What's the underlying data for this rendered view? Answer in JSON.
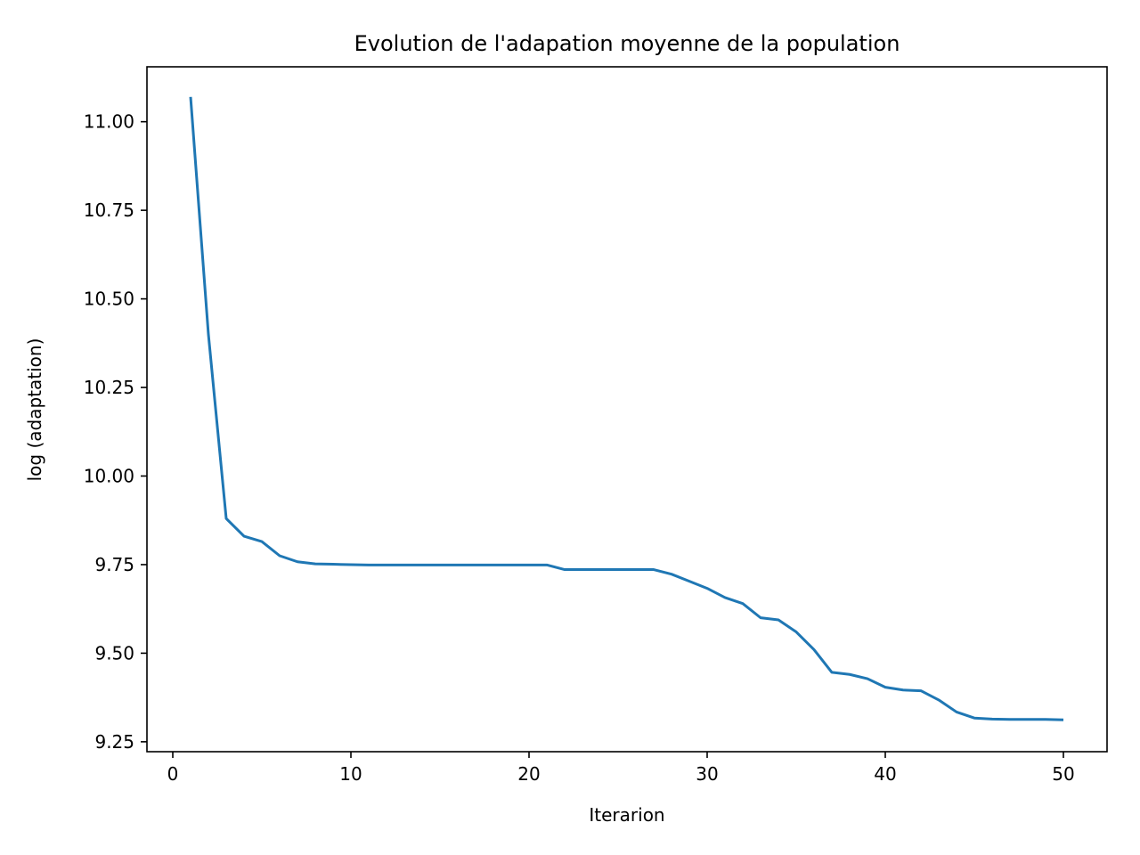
{
  "chart_data": {
    "type": "line",
    "title": "Evolution de l'adapation moyenne de la population",
    "xlabel": "Iterarion",
    "ylabel": "log (adaptation)",
    "xlim": [
      -1.45,
      52.45
    ],
    "ylim": [
      9.222,
      11.155
    ],
    "xticks": [
      0,
      10,
      20,
      30,
      40,
      50
    ],
    "yticks": [
      9.25,
      9.5,
      9.75,
      10.0,
      10.25,
      10.5,
      10.75,
      11.0
    ],
    "ytick_labels": [
      "9.25",
      "9.50",
      "9.75",
      "10.00",
      "10.25",
      "10.50",
      "10.75",
      "11.00"
    ],
    "grid": false,
    "series": [
      {
        "color": "#1f77b4",
        "x": [
          1,
          2,
          3,
          4,
          5,
          6,
          7,
          8,
          9,
          10,
          11,
          12,
          13,
          14,
          15,
          16,
          17,
          18,
          19,
          20,
          21,
          22,
          23,
          24,
          25,
          26,
          27,
          28,
          29,
          30,
          31,
          32,
          33,
          34,
          35,
          36,
          37,
          38,
          39,
          40,
          41,
          42,
          43,
          44,
          45,
          46,
          47,
          48,
          49,
          50
        ],
        "y": [
          11.07,
          10.4,
          9.88,
          9.83,
          9.815,
          9.775,
          9.758,
          9.752,
          9.751,
          9.75,
          9.749,
          9.749,
          9.749,
          9.749,
          9.749,
          9.749,
          9.749,
          9.749,
          9.749,
          9.749,
          9.749,
          9.736,
          9.736,
          9.736,
          9.736,
          9.736,
          9.736,
          9.723,
          9.703,
          9.683,
          9.657,
          9.64,
          9.6,
          9.594,
          9.56,
          9.51,
          9.446,
          9.44,
          9.428,
          9.404,
          9.396,
          9.394,
          9.368,
          9.334,
          9.317,
          9.314,
          9.313,
          9.313,
          9.313,
          9.312
        ]
      }
    ]
  }
}
